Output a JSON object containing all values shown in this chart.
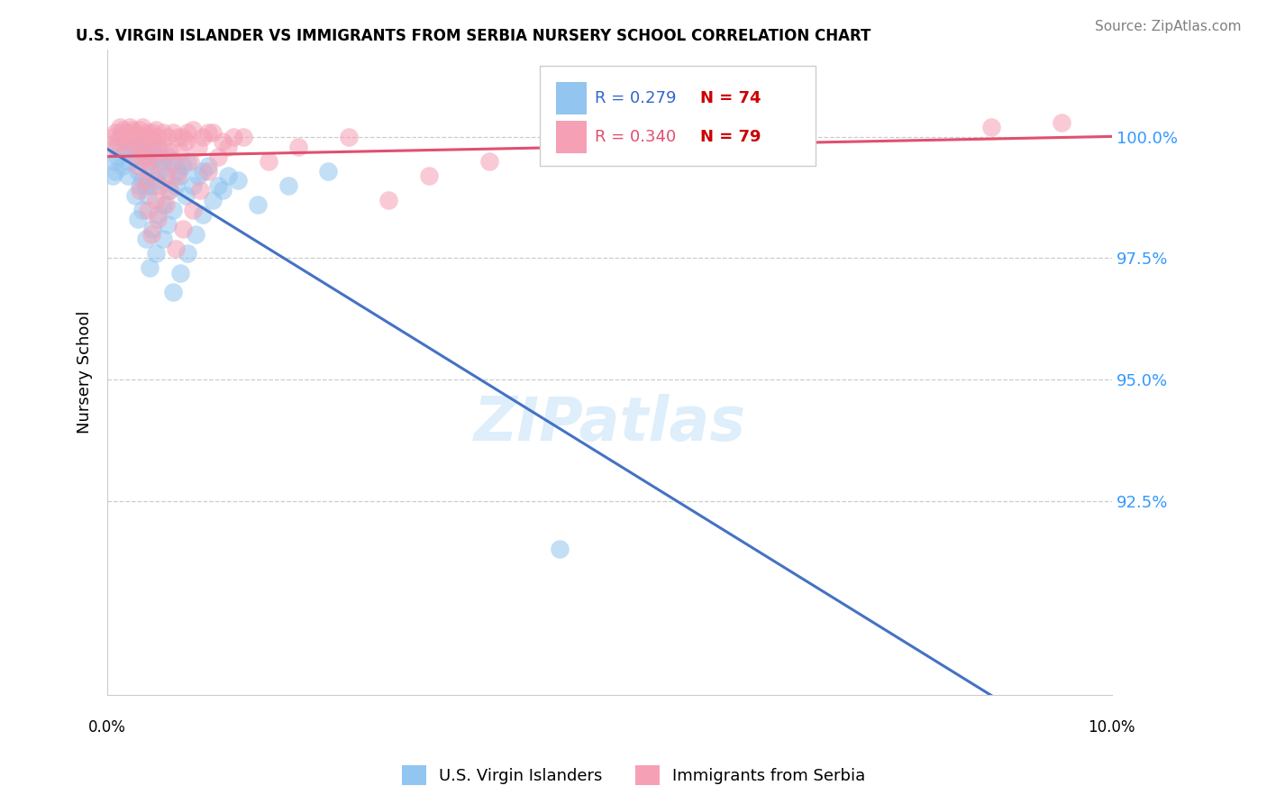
{
  "title": "U.S. VIRGIN ISLANDER VS IMMIGRANTS FROM SERBIA NURSERY SCHOOL CORRELATION CHART",
  "source": "Source: ZipAtlas.com",
  "ylabel": "Nursery School",
  "ytick_labels": [
    "100.0%",
    "97.5%",
    "95.0%",
    "92.5%"
  ],
  "ytick_values": [
    100.0,
    97.5,
    95.0,
    92.5
  ],
  "xlim": [
    0.0,
    10.0
  ],
  "ylim": [
    88.5,
    101.8
  ],
  "legend_blue_label": "U.S. Virgin Islanders",
  "legend_pink_label": "Immigrants from Serbia",
  "legend_R_blue": "R = 0.279",
  "legend_N_blue": "N = 74",
  "legend_R_pink": "R = 0.340",
  "legend_N_pink": "N = 79",
  "blue_color": "#92C5F0",
  "pink_color": "#F5A0B5",
  "blue_line_color": "#4472C4",
  "pink_line_color": "#E05070",
  "background_color": "#FFFFFF",
  "grid_color": "#CCCCCC",
  "blue_x": [
    0.05,
    0.08,
    0.1,
    0.12,
    0.15,
    0.1,
    0.08,
    0.18,
    0.2,
    0.22,
    0.15,
    0.25,
    0.28,
    0.3,
    0.32,
    0.2,
    0.22,
    0.35,
    0.38,
    0.3,
    0.4,
    0.42,
    0.45,
    0.35,
    0.48,
    0.5,
    0.38,
    0.42,
    0.28,
    0.32,
    0.55,
    0.6,
    0.52,
    0.65,
    0.58,
    0.45,
    0.48,
    0.4,
    0.35,
    0.3,
    0.7,
    0.75,
    0.8,
    0.68,
    0.72,
    0.62,
    0.55,
    0.5,
    0.45,
    0.38,
    0.9,
    0.95,
    0.85,
    1.0,
    0.78,
    0.65,
    0.6,
    0.55,
    0.48,
    0.42,
    1.1,
    1.2,
    1.05,
    1.15,
    1.3,
    0.95,
    0.88,
    0.8,
    0.72,
    0.65,
    1.5,
    1.8,
    2.2,
    4.5
  ],
  "blue_y": [
    99.2,
    99.5,
    99.8,
    100.0,
    100.1,
    99.6,
    99.3,
    99.7,
    99.9,
    100.0,
    99.4,
    99.8,
    99.6,
    99.9,
    100.0,
    99.2,
    99.5,
    99.7,
    99.8,
    99.3,
    99.5,
    99.7,
    99.8,
    99.1,
    99.6,
    99.8,
    99.0,
    99.4,
    98.8,
    99.0,
    99.5,
    99.6,
    99.3,
    99.5,
    99.2,
    99.0,
    99.1,
    98.8,
    98.5,
    98.3,
    99.3,
    99.4,
    99.5,
    99.0,
    99.2,
    98.9,
    98.6,
    98.4,
    98.1,
    97.9,
    99.2,
    99.3,
    99.0,
    99.4,
    98.8,
    98.5,
    98.2,
    97.9,
    97.6,
    97.3,
    99.0,
    99.2,
    98.7,
    98.9,
    99.1,
    98.4,
    98.0,
    97.6,
    97.2,
    96.8,
    98.6,
    99.0,
    99.3,
    91.5
  ],
  "pink_x": [
    0.05,
    0.08,
    0.12,
    0.15,
    0.18,
    0.1,
    0.07,
    0.2,
    0.22,
    0.25,
    0.18,
    0.28,
    0.3,
    0.32,
    0.35,
    0.22,
    0.25,
    0.38,
    0.4,
    0.32,
    0.42,
    0.45,
    0.48,
    0.38,
    0.5,
    0.55,
    0.4,
    0.45,
    0.3,
    0.35,
    0.6,
    0.65,
    0.55,
    0.7,
    0.62,
    0.48,
    0.52,
    0.42,
    0.38,
    0.32,
    0.75,
    0.8,
    0.85,
    0.72,
    0.78,
    0.65,
    0.58,
    0.52,
    0.48,
    0.4,
    0.95,
    1.0,
    0.9,
    1.05,
    0.82,
    0.7,
    0.62,
    0.58,
    0.5,
    0.44,
    1.15,
    1.25,
    1.1,
    1.2,
    1.35,
    1.0,
    0.92,
    0.85,
    0.75,
    0.68,
    1.6,
    1.9,
    2.4,
    2.8,
    3.2,
    3.8,
    5.5,
    8.8,
    9.5
  ],
  "pink_y": [
    100.0,
    100.1,
    100.2,
    100.15,
    100.05,
    99.9,
    99.8,
    100.1,
    100.2,
    100.15,
    99.9,
    100.1,
    100.0,
    100.15,
    100.2,
    99.7,
    99.9,
    100.0,
    100.1,
    99.8,
    100.0,
    100.1,
    100.15,
    99.7,
    100.0,
    100.1,
    99.6,
    99.9,
    99.4,
    99.6,
    100.0,
    100.1,
    99.8,
    100.0,
    99.7,
    99.5,
    99.7,
    99.3,
    99.1,
    98.9,
    100.0,
    100.1,
    100.15,
    99.7,
    99.9,
    99.5,
    99.2,
    99.0,
    98.7,
    98.5,
    100.0,
    100.1,
    99.8,
    100.1,
    99.5,
    99.2,
    98.9,
    98.6,
    98.3,
    98.0,
    99.9,
    100.0,
    99.6,
    99.8,
    100.0,
    99.3,
    98.9,
    98.5,
    98.1,
    97.7,
    99.5,
    99.8,
    100.0,
    98.7,
    99.2,
    99.5,
    100.0,
    100.2,
    100.3
  ]
}
